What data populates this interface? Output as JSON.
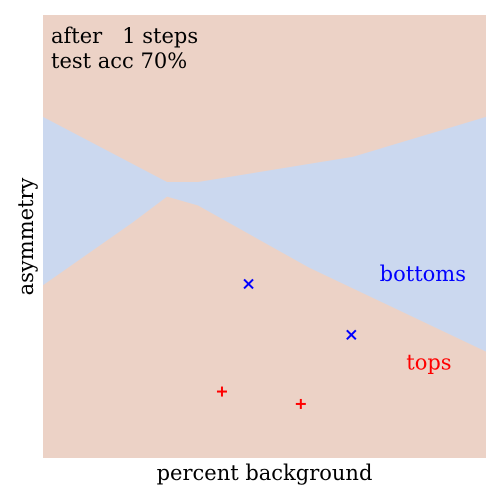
{
  "chart_data": {
    "type": "scatter",
    "xlabel": "percent background",
    "ylabel": "asymmetry",
    "xlim": [
      0,
      1
    ],
    "ylim": [
      0,
      1
    ],
    "grid": false,
    "annotation_lines": [
      "after   1 steps",
      "test acc 70%"
    ],
    "region_labels": [
      {
        "label": "bottoms",
        "color": "#0000ff",
        "pos": [
          0.76,
          0.4
        ]
      },
      {
        "label": "tops",
        "color": "#ff0000",
        "pos": [
          0.82,
          0.2
        ]
      }
    ],
    "regions": {
      "tops_fill": "#ecd2c6",
      "bottoms_fill": "#cbd8ef",
      "bottoms_band_upper": [
        {
          "x": 0.0,
          "y": 0.77
        },
        {
          "x": 0.28,
          "y": 0.623
        },
        {
          "x": 0.35,
          "y": 0.623
        },
        {
          "x": 0.7,
          "y": 0.68
        },
        {
          "x": 1.0,
          "y": 0.77
        }
      ],
      "bottoms_band_lower": [
        {
          "x": 0.0,
          "y": 0.39
        },
        {
          "x": 0.2,
          "y": 0.53
        },
        {
          "x": 0.28,
          "y": 0.59
        },
        {
          "x": 0.35,
          "y": 0.57
        },
        {
          "x": 0.6,
          "y": 0.43
        },
        {
          "x": 1.0,
          "y": 0.24
        }
      ]
    },
    "series": [
      {
        "name": "bottoms",
        "marker": "x",
        "color": "#0000ff",
        "points": [
          {
            "x": 0.464,
            "y": 0.393
          },
          {
            "x": 0.696,
            "y": 0.278
          }
        ]
      },
      {
        "name": "tops",
        "marker": "+",
        "color": "#ff0000",
        "points": [
          {
            "x": 0.404,
            "y": 0.15
          },
          {
            "x": 0.582,
            "y": 0.122
          }
        ]
      }
    ]
  }
}
